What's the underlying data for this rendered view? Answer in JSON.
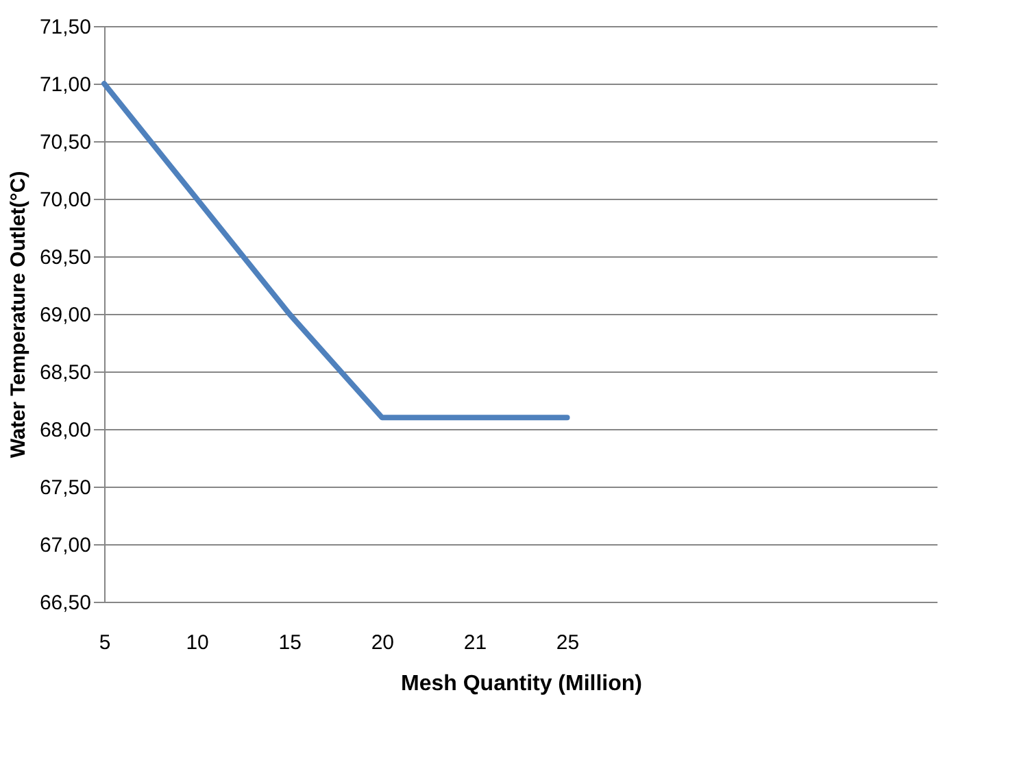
{
  "chart_data": {
    "type": "line",
    "xlabel": "Mesh Quantity (Million)",
    "ylabel": "Water Temperature Outlet(°C)",
    "categories": [
      "5",
      "10",
      "15",
      "20",
      "21",
      "25",
      null,
      null,
      null,
      null
    ],
    "series": [
      {
        "color": "#4f81bd",
        "values": [
          71.0,
          70.0,
          69.0,
          68.1,
          68.1,
          68.1,
          null,
          null,
          null,
          null
        ]
      }
    ],
    "ylim": [
      66.5,
      71.5
    ],
    "yticks": [
      {
        "value": 66.5,
        "label": "66,50"
      },
      {
        "value": 67.0,
        "label": "67,00"
      },
      {
        "value": 67.5,
        "label": "67,50"
      },
      {
        "value": 68.0,
        "label": "68,00"
      },
      {
        "value": 68.5,
        "label": "68,50"
      },
      {
        "value": 69.0,
        "label": "69,00"
      },
      {
        "value": 69.5,
        "label": "69,50"
      },
      {
        "value": 70.0,
        "label": "70,00"
      },
      {
        "value": 70.5,
        "label": "70,50"
      },
      {
        "value": 71.0,
        "label": "71,00"
      },
      {
        "value": 71.5,
        "label": "71,50"
      }
    ],
    "grid": "y",
    "legend": false,
    "marker": "none",
    "line_style": "solid"
  }
}
